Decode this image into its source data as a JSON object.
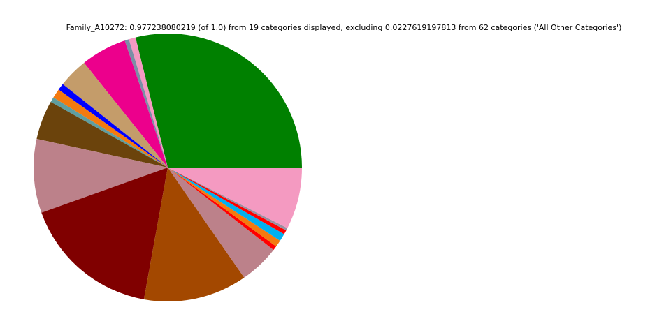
{
  "chart_data": {
    "type": "pie",
    "title": "Family_A10272: 0.977238080219 (of 1.0) from 19 categories displayed, excluding 0.0227619197813 from 62 categories ('All Other Categories')",
    "categories": [
      null,
      null,
      null,
      null,
      null,
      null,
      null,
      null,
      null,
      null,
      null,
      null,
      null,
      null,
      null,
      null,
      null,
      null,
      null
    ],
    "values": [
      0.282,
      0.008,
      0.005,
      0.054,
      0.035,
      0.008,
      0.011,
      0.006,
      0.046,
      0.087,
      0.163,
      0.122,
      0.047,
      0.005,
      0.008,
      0.009,
      0.005,
      0.003,
      0.073
    ],
    "colors": [
      "#008000",
      "#f49ac1",
      "#7a8fa6",
      "#ec008c",
      "#c49c6a",
      "#0000ff",
      "#f47a0f",
      "#5f9ea0",
      "#6b430c",
      "#bc818a",
      "#800000",
      "#a34800",
      "#bc818a",
      "#ff0000",
      "#f47a0f",
      "#00b0f0",
      "#ff0000",
      "#9c8fa0",
      "#f49ac1"
    ]
  }
}
